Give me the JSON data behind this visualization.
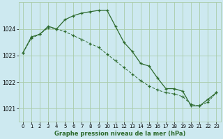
{
  "title": "Graphe pression niveau de la mer (hPa)",
  "background_color": "#cde9f0",
  "grid_color": "#aaccaa",
  "line_color": "#2d6a2d",
  "ylim": [
    1020.5,
    1025.0
  ],
  "yticks": [
    1021,
    1022,
    1023,
    1024
  ],
  "xlim": [
    -0.5,
    23.5
  ],
  "xticks": [
    0,
    1,
    2,
    3,
    4,
    5,
    6,
    7,
    8,
    9,
    10,
    11,
    12,
    13,
    14,
    15,
    16,
    17,
    18,
    19,
    20,
    21,
    22,
    23
  ],
  "series1_x": [
    0,
    1,
    2,
    3,
    4,
    5,
    6,
    7,
    8,
    9,
    10,
    11,
    12,
    13,
    14,
    15,
    16,
    17,
    18,
    19,
    20,
    21,
    22,
    23
  ],
  "series1_y": [
    1023.1,
    1023.7,
    1023.8,
    1024.1,
    1024.0,
    1024.35,
    1024.5,
    1024.6,
    1024.65,
    1024.7,
    1024.7,
    1024.1,
    1023.5,
    1023.15,
    1022.7,
    1022.6,
    1022.15,
    1021.75,
    1021.75,
    1021.65,
    1021.1,
    1021.1,
    1021.35,
    1021.6
  ],
  "series2_x": [
    0,
    1,
    2,
    3,
    4,
    5,
    6,
    7,
    8,
    9,
    10,
    11,
    12,
    13,
    14,
    15,
    16,
    17,
    18,
    19,
    20,
    21,
    22,
    23
  ],
  "series2_y": [
    1023.1,
    1023.65,
    1023.8,
    1024.05,
    1024.0,
    1023.9,
    1023.75,
    1023.6,
    1023.45,
    1023.3,
    1023.05,
    1022.8,
    1022.55,
    1022.3,
    1022.05,
    1021.85,
    1021.7,
    1021.6,
    1021.55,
    1021.45,
    1021.15,
    1021.1,
    1021.25,
    1021.6
  ],
  "figwidth": 3.2,
  "figheight": 2.0,
  "dpi": 100
}
